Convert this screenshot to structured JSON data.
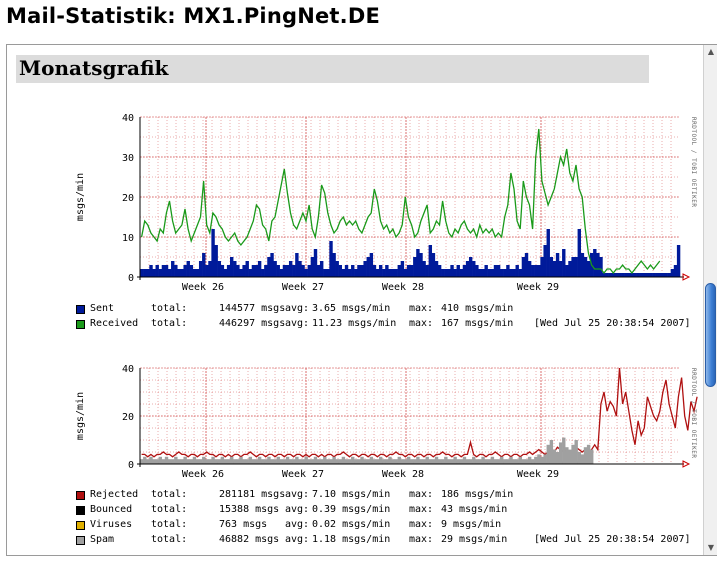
{
  "page_title": "Mail-Statistik: MX1.PingNet.DE",
  "section_title": "Monatsgrafik",
  "rrdtool_credit": "RRDTOOL / TOBI OETIKER",
  "colors": {
    "sent": "#001a9a",
    "received": "#1a9a1a",
    "rejected": "#b01010",
    "bounced": "#000000",
    "viruses": "#e0b000",
    "spam": "#a0a0a0",
    "grid": "#cc3333",
    "frame_border": "#9a9a9a"
  },
  "chart_data": [
    {
      "type": "area",
      "ylabel": "msgs/min",
      "ylim": [
        0,
        40
      ],
      "yticks": [
        "40",
        "30",
        "20",
        "10",
        "0"
      ],
      "xticks": [
        "Week 26",
        "Week 27",
        "Week 28",
        "Week 29"
      ],
      "series": [
        {
          "name": "Sent",
          "type": "bar",
          "values": [
            2,
            2,
            2,
            3,
            2,
            3,
            2,
            3,
            3,
            2,
            4,
            3,
            2,
            2,
            3,
            4,
            3,
            2,
            2,
            4,
            6,
            3,
            4,
            12,
            8,
            4,
            3,
            2,
            3,
            5,
            4,
            3,
            2,
            3,
            4,
            2,
            3,
            3,
            4,
            2,
            3,
            5,
            6,
            4,
            3,
            2,
            3,
            3,
            4,
            3,
            6,
            4,
            3,
            2,
            3,
            5,
            7,
            3,
            4,
            2,
            2,
            9,
            6,
            4,
            3,
            2,
            3,
            2,
            3,
            2,
            3,
            3,
            4,
            5,
            6,
            3,
            2,
            3,
            2,
            3,
            2,
            2,
            2,
            3,
            4,
            2,
            3,
            3,
            5,
            7,
            6,
            4,
            3,
            8,
            6,
            4,
            3,
            2,
            2,
            2,
            3,
            2,
            3,
            2,
            3,
            4,
            5,
            4,
            3,
            2,
            2,
            3,
            2,
            2,
            3,
            3,
            2,
            2,
            3,
            2,
            2,
            3,
            2,
            5,
            6,
            4,
            3,
            3,
            3,
            5,
            8,
            12,
            5,
            4,
            6,
            4,
            7,
            3,
            4,
            5,
            5,
            12,
            6,
            5,
            4,
            6,
            7,
            6,
            5,
            1,
            1,
            1,
            1,
            1,
            1,
            1,
            1,
            1,
            1,
            1,
            1,
            1,
            1,
            1,
            1,
            1,
            1,
            1,
            1,
            1,
            1,
            2,
            3,
            8
          ]
        },
        {
          "name": "Received",
          "type": "line",
          "values": [
            10,
            14,
            13,
            11,
            10,
            9,
            12,
            11,
            16,
            19,
            14,
            11,
            12,
            13,
            17,
            12,
            9,
            11,
            13,
            15,
            24,
            13,
            11,
            16,
            15,
            13,
            12,
            10,
            9,
            10,
            11,
            9,
            8,
            9,
            10,
            12,
            14,
            18,
            17,
            13,
            12,
            9,
            14,
            15,
            19,
            23,
            27,
            21,
            16,
            13,
            12,
            14,
            16,
            14,
            18,
            12,
            10,
            15,
            23,
            21,
            16,
            13,
            11,
            12,
            14,
            15,
            13,
            14,
            13,
            14,
            12,
            11,
            13,
            15,
            16,
            22,
            19,
            14,
            12,
            13,
            11,
            12,
            10,
            11,
            13,
            20,
            15,
            13,
            10,
            11,
            14,
            16,
            18,
            11,
            12,
            14,
            13,
            19,
            14,
            11,
            10,
            12,
            11,
            13,
            14,
            12,
            11,
            12,
            10,
            13,
            11,
            12,
            11,
            12,
            10,
            11,
            10,
            15,
            18,
            26,
            22,
            14,
            12,
            24,
            20,
            18,
            12,
            30,
            37,
            24,
            21,
            18,
            20,
            22,
            26,
            30,
            28,
            32,
            26,
            24,
            28,
            22,
            20,
            12,
            6,
            3,
            2,
            2,
            2,
            1,
            2,
            2,
            1,
            2,
            2,
            3,
            2,
            2,
            1,
            2,
            3,
            4,
            3,
            2,
            3,
            2,
            3,
            4
          ]
        }
      ],
      "legend": [
        {
          "name": "Sent",
          "total": "144577 msgs",
          "avg": " 3.65 msgs/min",
          "max": "410 msgs/min"
        },
        {
          "name": "Received",
          "total": "446297 msgs",
          "avg": "11.23 msgs/min",
          "max": "167 msgs/min"
        }
      ],
      "timestamp": "[Wed Jul 25 20:38:54 2007]"
    },
    {
      "type": "area",
      "ylabel": "msgs/min",
      "ylim": [
        0,
        40
      ],
      "yticks": [
        "40",
        "20",
        "0"
      ],
      "xticks": [
        "Week 26",
        "Week 27",
        "Week 28",
        "Week 29"
      ],
      "series": [
        {
          "name": "Rejected",
          "type": "line",
          "values": [
            4,
            4,
            3,
            4,
            3,
            4,
            4,
            5,
            4,
            4,
            3,
            4,
            5,
            4,
            4,
            3,
            4,
            4,
            3,
            4,
            4,
            5,
            4,
            4,
            3,
            4,
            4,
            3,
            4,
            3,
            4,
            4,
            3,
            4,
            4,
            5,
            4,
            3,
            4,
            4,
            3,
            4,
            4,
            3,
            4,
            4,
            3,
            4,
            4,
            3,
            4,
            4,
            3,
            4,
            3,
            4,
            4,
            3,
            4,
            3,
            4,
            4,
            3,
            4,
            4,
            5,
            4,
            3,
            4,
            4,
            3,
            4,
            4,
            3,
            4,
            4,
            3,
            4,
            4,
            3,
            4,
            4,
            5,
            4,
            4,
            3,
            4,
            4,
            3,
            4,
            4,
            3,
            4,
            4,
            3,
            4,
            4,
            5,
            4,
            4,
            3,
            4,
            4,
            3,
            4,
            4,
            9,
            4,
            3,
            4,
            4,
            3,
            4,
            4,
            5,
            4,
            3,
            4,
            4,
            3,
            4,
            4,
            3,
            4,
            4,
            5,
            4,
            5,
            6,
            5,
            4,
            5,
            6,
            5,
            7,
            6,
            5,
            6,
            5,
            6,
            7,
            6,
            5,
            6,
            5,
            6,
            8,
            6,
            25,
            30,
            22,
            26,
            24,
            20,
            40,
            25,
            30,
            22,
            14,
            8,
            18,
            12,
            15,
            28,
            24,
            20,
            18,
            22,
            30,
            35,
            25,
            20,
            15,
            28,
            36,
            20,
            14,
            26,
            22,
            28
          ]
        },
        {
          "name": "Bounced",
          "type": "bar",
          "values": [
            1,
            0.5,
            0.5,
            1,
            0.5,
            0.5,
            1,
            0.5,
            0.5,
            1,
            0.5,
            0.5,
            1,
            0.5,
            0.5,
            1,
            0.5,
            0.5,
            1,
            0.5,
            0.5,
            1,
            0.5,
            0.5,
            1,
            0.5,
            0.5,
            1,
            0.5,
            0.5,
            1,
            0.5,
            0.5,
            1,
            0.5,
            0.5,
            1,
            0.5,
            0.5,
            1,
            0.5,
            0.5,
            1,
            0.5,
            0.5,
            1,
            0.5,
            0.5,
            1,
            0.5,
            0.5,
            1,
            0.5,
            0.5,
            1,
            0.5,
            0.5,
            1,
            0.5,
            0.5,
            1,
            0.5,
            0.5,
            1,
            0.5,
            0.5,
            1,
            0.5,
            0.5,
            1,
            0.5,
            0.5,
            1,
            0.5,
            0.5,
            1,
            0.5,
            0.5,
            1,
            0.5,
            0.5,
            1,
            0.5,
            0.5,
            1,
            0.5,
            0.5,
            1,
            0.5,
            0.5,
            1,
            0.5,
            0.5,
            1,
            0.5,
            0.5,
            1,
            0.5,
            0.5,
            1,
            0.5,
            0.5,
            1,
            0.5,
            0.5,
            1,
            0.5,
            0.5,
            1,
            0.5,
            0.5,
            1,
            0.5,
            0.5,
            1,
            0.5,
            0.5,
            1,
            0.5,
            0.5,
            1,
            0.5,
            0.5,
            1,
            0.5,
            0.5,
            1,
            0.5,
            0.5,
            1,
            0.5,
            0.5,
            1,
            0.5,
            0.5,
            1,
            0.5,
            0.5,
            1,
            0.5,
            0.5,
            1,
            0.5,
            0.5,
            0,
            0,
            0,
            0,
            0,
            0,
            0,
            0,
            0,
            0,
            0,
            0,
            0,
            0,
            0,
            0,
            0,
            0,
            0,
            0,
            0,
            0,
            0,
            0,
            0,
            0,
            0,
            0,
            0,
            0,
            0,
            0,
            0
          ]
        },
        {
          "name": "Viruses",
          "type": "bar",
          "values": []
        },
        {
          "name": "Spam",
          "type": "bar",
          "values": [
            2,
            3,
            2,
            3,
            2,
            2,
            3,
            2,
            3,
            2,
            2,
            3,
            2,
            2,
            3,
            2,
            2,
            3,
            2,
            2,
            3,
            2,
            2,
            3,
            2,
            2,
            3,
            2,
            2,
            3,
            2,
            2,
            3,
            2,
            2,
            3,
            2,
            2,
            3,
            2,
            2,
            3,
            2,
            2,
            3,
            2,
            2,
            3,
            2,
            2,
            3,
            2,
            2,
            3,
            2,
            2,
            3,
            2,
            2,
            3,
            2,
            2,
            3,
            2,
            2,
            3,
            2,
            2,
            3,
            2,
            2,
            3,
            2,
            2,
            3,
            2,
            2,
            3,
            2,
            2,
            3,
            2,
            2,
            3,
            2,
            2,
            3,
            2,
            2,
            3,
            2,
            2,
            3,
            2,
            2,
            3,
            2,
            2,
            3,
            2,
            2,
            3,
            2,
            2,
            3,
            2,
            2,
            3,
            2,
            2,
            3,
            2,
            2,
            3,
            2,
            2,
            3,
            2,
            2,
            3,
            2,
            2,
            3,
            2,
            2,
            3,
            2,
            3,
            4,
            3,
            4,
            8,
            10,
            6,
            5,
            9,
            11,
            7,
            6,
            8,
            10,
            5,
            4,
            7,
            8,
            6,
            0,
            0,
            0,
            0,
            0,
            0,
            0,
            0,
            0,
            0,
            0,
            0,
            0,
            0,
            0,
            0,
            0,
            0,
            0,
            0,
            0,
            0,
            0,
            0,
            0,
            0,
            0,
            0,
            0,
            0,
            0,
            0,
            0
          ]
        }
      ],
      "legend": [
        {
          "name": "Rejected",
          "total": "281181 msgs",
          "avg": " 7.10 msgs/min",
          "max": "186 msgs/min"
        },
        {
          "name": "Bounced",
          "total": " 15388 msgs",
          "avg": " 0.39 msgs/min",
          "max": " 43 msgs/min"
        },
        {
          "name": "Viruses",
          "total": "   763 msgs",
          "avg": " 0.02 msgs/min",
          "max": "  9 msgs/min"
        },
        {
          "name": "Spam",
          "total": " 46882 msgs",
          "avg": " 1.18 msgs/min",
          "max": " 29 msgs/min"
        }
      ],
      "timestamp": "[Wed Jul 25 20:38:54 2007]"
    }
  ],
  "legend_words": {
    "total": "total:",
    "avg": "avg:",
    "max": "max:"
  }
}
